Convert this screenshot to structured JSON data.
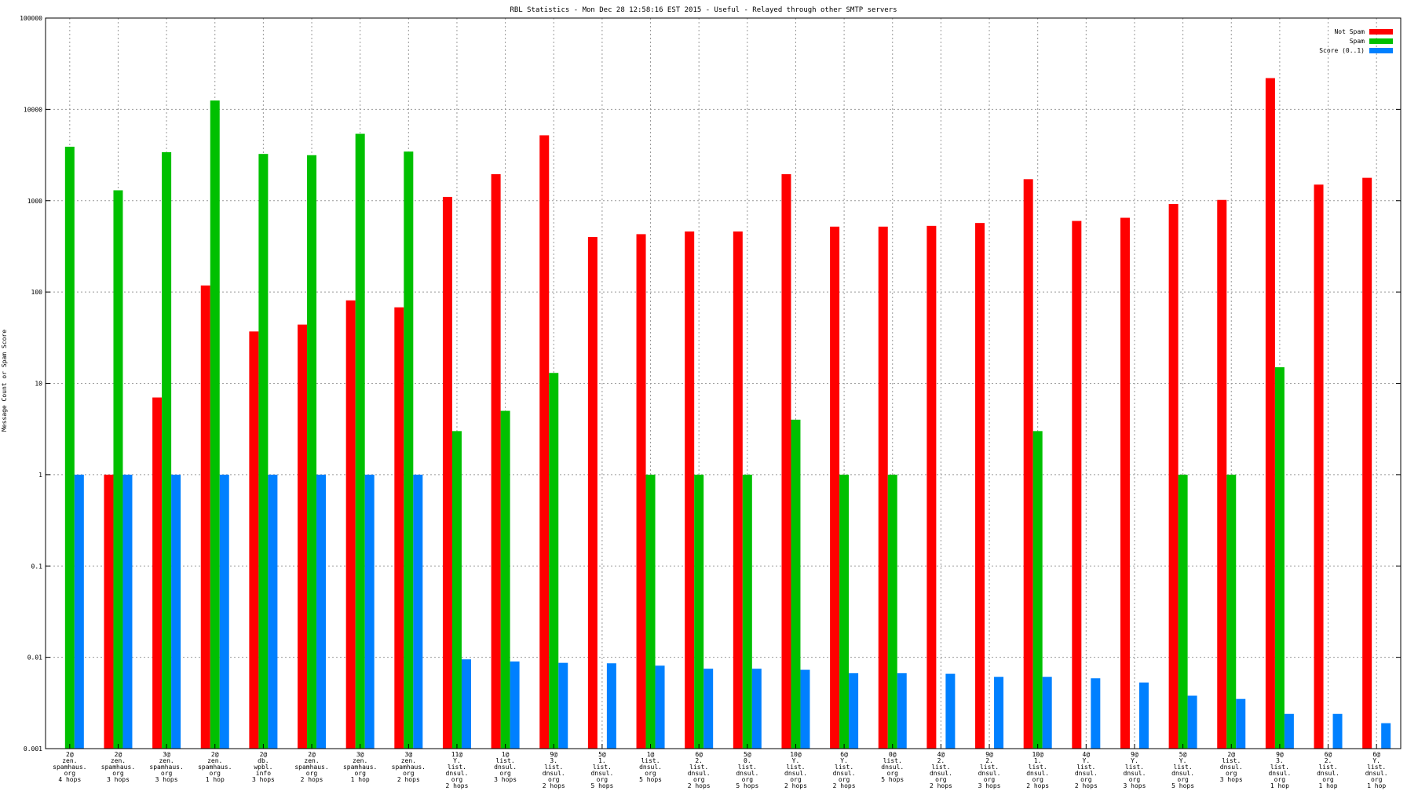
{
  "chart_data": {
    "type": "bar",
    "title": "RBL Statistics - Mon Dec 28 12:58:16 EST 2015 - Useful - Relayed through other SMTP servers",
    "xlabel": "",
    "ylabel": "Message Count or Spam Score",
    "yscale": "log",
    "ylim": [
      0.001,
      100000
    ],
    "grid": true,
    "legend_position": "top-right",
    "y_tick_labels": [
      "0.001",
      "0.01",
      "0.1",
      "1",
      "10",
      "100",
      "1000",
      "10000",
      "100000"
    ],
    "categories": [
      [
        "2@",
        "zen.",
        "spamhaus.",
        "org",
        "4 hops"
      ],
      [
        "2@",
        "zen.",
        "spamhaus.",
        "org",
        "3 hops"
      ],
      [
        "3@",
        "zen.",
        "spamhaus.",
        "org",
        "3 hops"
      ],
      [
        "2@",
        "zen.",
        "spamhaus.",
        "org",
        "1 hop"
      ],
      [
        "2@",
        "db.",
        "wpbl.",
        "info",
        "3 hops"
      ],
      [
        "2@",
        "zen.",
        "spamhaus.",
        "org",
        "2 hops"
      ],
      [
        "3@",
        "zen.",
        "spamhaus.",
        "org",
        "1 hop"
      ],
      [
        "3@",
        "zen.",
        "spamhaus.",
        "org",
        "2 hops"
      ],
      [
        "11@",
        "Y.",
        "list.",
        "dnsul.",
        "org",
        "2 hops"
      ],
      [
        "1@",
        "list.",
        "dnsul.",
        "org",
        "3 hops"
      ],
      [
        "9@",
        "3.",
        "list.",
        "dnsul.",
        "org",
        "2 hops"
      ],
      [
        "5@",
        "1.",
        "list.",
        "dnsul.",
        "org",
        "5 hops"
      ],
      [
        "1@",
        "list.",
        "dnsul.",
        "org",
        "5 hops"
      ],
      [
        "6@",
        "2.",
        "list.",
        "dnsul.",
        "org",
        "2 hops"
      ],
      [
        "5@",
        "0.",
        "list.",
        "dnsul.",
        "org",
        "5 hops"
      ],
      [
        "10@",
        "Y.",
        "list.",
        "dnsul.",
        "org",
        "2 hops"
      ],
      [
        "6@",
        "Y.",
        "list.",
        "dnsul.",
        "org",
        "2 hops"
      ],
      [
        "0@",
        "list.",
        "dnsul.",
        "org",
        "5 hops"
      ],
      [
        "4@",
        "2.",
        "list.",
        "dnsul.",
        "org",
        "2 hops"
      ],
      [
        "9@",
        "2.",
        "list.",
        "dnsul.",
        "org",
        "3 hops"
      ],
      [
        "10@",
        "1.",
        "list.",
        "dnsul.",
        "org",
        "2 hops"
      ],
      [
        "4@",
        "Y.",
        "list.",
        "dnsul.",
        "org",
        "2 hops"
      ],
      [
        "9@",
        "Y.",
        "list.",
        "dnsul.",
        "org",
        "3 hops"
      ],
      [
        "5@",
        "Y.",
        "list.",
        "dnsul.",
        "org",
        "5 hops"
      ],
      [
        "2@",
        "list.",
        "dnsul.",
        "org",
        "3 hops"
      ],
      [
        "9@",
        "3.",
        "list.",
        "dnsul.",
        "org",
        "1 hop"
      ],
      [
        "6@",
        "2.",
        "list.",
        "dnsul.",
        "org",
        "1 hop"
      ],
      [
        "6@",
        "Y.",
        "list.",
        "dnsul.",
        "org",
        "1 hop"
      ]
    ],
    "series": [
      {
        "name": "Not Spam",
        "color": "#ff0000",
        "values": [
          null,
          1,
          7,
          118,
          37,
          44,
          81,
          68,
          1100,
          1950,
          5200,
          400,
          430,
          460,
          460,
          1950,
          520,
          520,
          530,
          570,
          1720,
          600,
          650,
          920,
          1020,
          22000,
          1500,
          1780
        ]
      },
      {
        "name": "Spam",
        "color": "#00c000",
        "values": [
          3900,
          1300,
          3400,
          12500,
          3250,
          3150,
          5400,
          3450,
          3,
          5,
          13,
          null,
          1,
          1,
          1,
          4,
          1,
          1,
          null,
          null,
          3,
          null,
          null,
          1,
          1,
          15,
          null,
          null
        ]
      },
      {
        "name": "Score (0..1)",
        "color": "#0080ff",
        "values": [
          1,
          1,
          1,
          1,
          1,
          1,
          1,
          1,
          0.0095,
          0.009,
          0.0087,
          0.0086,
          0.0081,
          0.0075,
          0.0075,
          0.0073,
          0.0067,
          0.0067,
          0.0066,
          0.0061,
          0.0061,
          0.0059,
          0.0053,
          0.0038,
          0.0035,
          0.0024,
          0.0024,
          0.0019
        ]
      }
    ]
  }
}
